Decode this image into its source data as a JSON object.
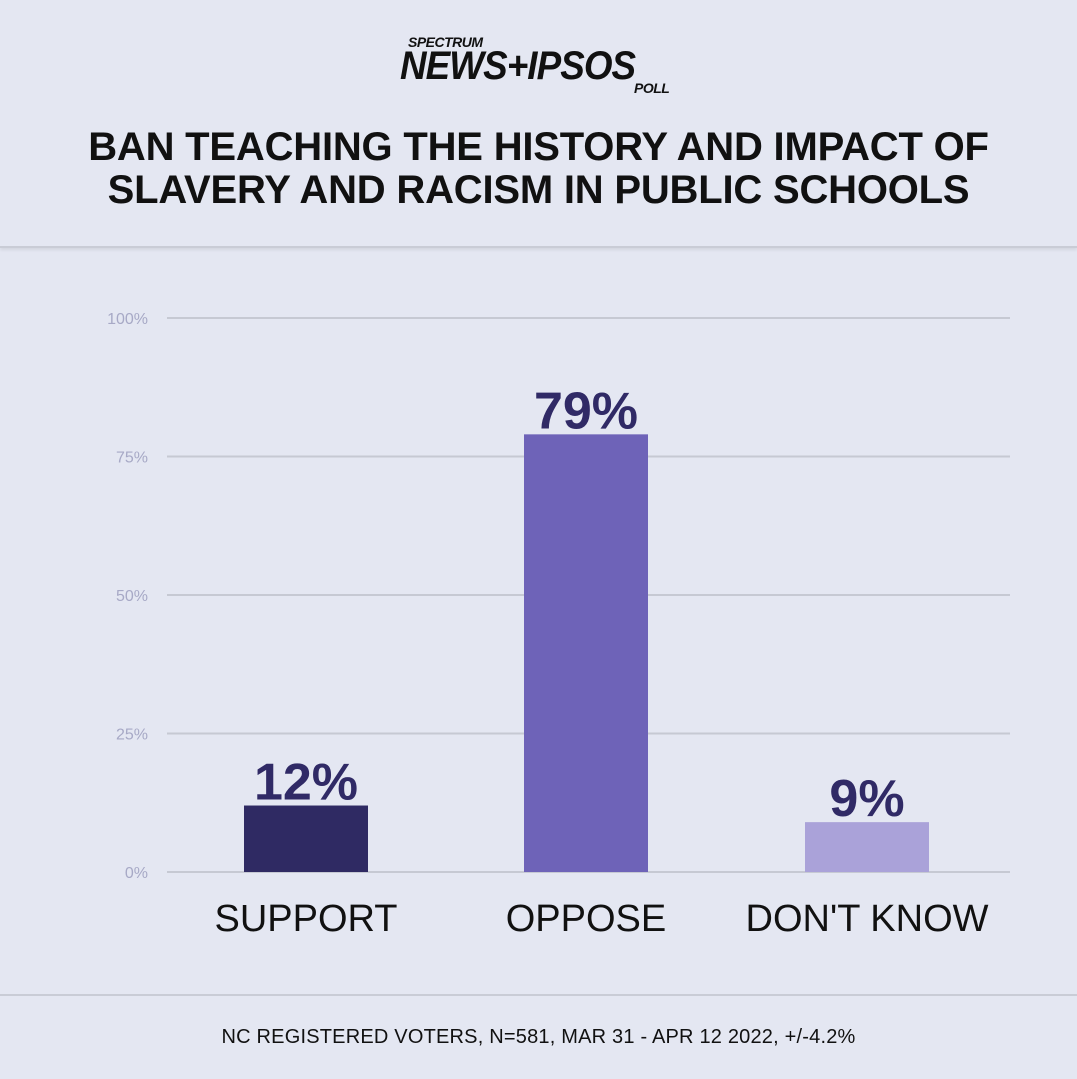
{
  "logo": {
    "top_text": "SPECTRUM",
    "main_text": "NEWS+IPSOS",
    "bottom_text": "POLL"
  },
  "title": "BAN TEACHING THE HISTORY AND IMPACT OF\nSLAVERY AND RACISM IN PUBLIC SCHOOLS",
  "footnote": "NC REGISTERED VOTERS, N=581, MAR 31 - APR 12 2022, +/-4.2%",
  "colors": {
    "background": "#e4e7f2",
    "grid": "#c6c9d3",
    "tick_label": "#a7a9c6",
    "value_label": "#302a66",
    "category_label": "#111111"
  },
  "chart_data": {
    "type": "bar",
    "categories": [
      "SUPPORT",
      "OPPOSE",
      "DON'T KNOW"
    ],
    "values": [
      12,
      79,
      9
    ],
    "value_labels": [
      "12%",
      "79%",
      "9%"
    ],
    "bar_colors": [
      "#2f2a63",
      "#6e63b8",
      "#aaa2d9"
    ],
    "ylim": [
      0,
      100
    ],
    "yticks": [
      0,
      25,
      50,
      75,
      100
    ],
    "ytick_labels": [
      "0%",
      "25%",
      "50%",
      "75%",
      "100%"
    ],
    "grid": true,
    "title": "BAN TEACHING THE HISTORY AND IMPACT OF SLAVERY AND RACISM IN PUBLIC SCHOOLS",
    "xlabel": "",
    "ylabel": ""
  }
}
